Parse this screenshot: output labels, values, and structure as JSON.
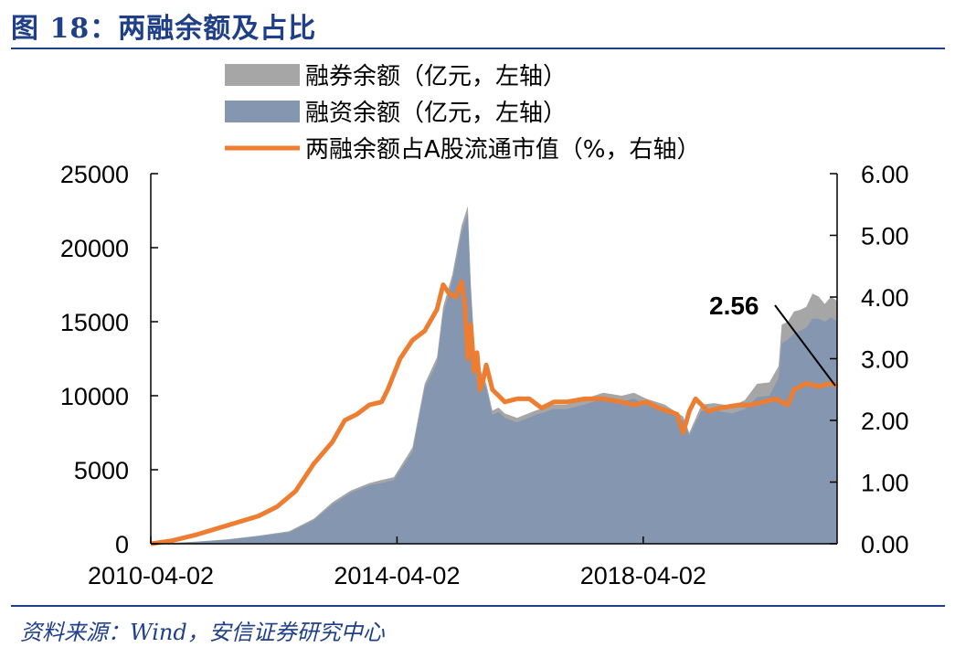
{
  "header": {
    "title": "图 18：两融余额及占比"
  },
  "footer": {
    "source": "资料来源：Wind，安信证券研究中心"
  },
  "colors": {
    "short": "#a6a6a6",
    "financing": "#8496b0",
    "ratio": "#ed7d31",
    "accent": "#1f3f88"
  },
  "chart_data": {
    "type": "area",
    "title": "两融余额及占比",
    "legend": [
      "融券余额（亿元，左轴）",
      "融资余额（亿元，左轴）",
      "两融余额占A股流通市值（%，右轴）"
    ],
    "legend_position": "top",
    "x_ticks": [
      "2010-04-02",
      "2014-04-02",
      "2018-04-02"
    ],
    "y_left": {
      "ticks": [
        "0",
        "5000",
        "10000",
        "15000",
        "20000",
        "25000"
      ],
      "range": [
        0,
        25000
      ]
    },
    "y_right": {
      "ticks": [
        "0.00",
        "1.00",
        "2.00",
        "3.00",
        "4.00",
        "5.00",
        "6.00"
      ],
      "range": [
        0,
        6
      ]
    },
    "x_range": [
      2010.25,
      2021.4
    ],
    "annotation": {
      "label": "2.56",
      "x": 2021.4,
      "y": 2.56
    },
    "series": [
      {
        "name": "融券余额（亿元，左轴）",
        "axis": "left",
        "stack": "total",
        "x": [
          2010.25,
          2010.6,
          2011.0,
          2011.5,
          2012.0,
          2012.5,
          2012.9,
          2013.2,
          2013.5,
          2013.8,
          2014.0,
          2014.2,
          2014.5,
          2014.7,
          2014.9,
          2015.0,
          2015.15,
          2015.3,
          2015.4,
          2015.45,
          2015.5,
          2015.55,
          2015.6,
          2015.7,
          2015.8,
          2015.9,
          2016.0,
          2016.2,
          2016.5,
          2016.8,
          2017.0,
          2017.3,
          2017.6,
          2017.9,
          2018.1,
          2018.3,
          2018.6,
          2018.9,
          2019.0,
          2019.2,
          2019.4,
          2019.7,
          2019.9,
          2020.1,
          2020.3,
          2020.45,
          2020.5,
          2020.6,
          2020.7,
          2020.8,
          2020.9,
          2021.0,
          2021.1,
          2021.2,
          2021.3,
          2021.4
        ],
        "values": [
          0,
          60,
          150,
          300,
          550,
          850,
          1700,
          2800,
          3600,
          4100,
          4300,
          4500,
          6500,
          10800,
          12600,
          16000,
          18200,
          21500,
          22800,
          17500,
          14000,
          11200,
          11800,
          10800,
          9000,
          9200,
          8800,
          8500,
          9000,
          9400,
          9400,
          9800,
          10200,
          10000,
          10200,
          9800,
          9400,
          8600,
          7500,
          9400,
          9500,
          9300,
          9700,
          10800,
          10900,
          12000,
          14800,
          15000,
          15700,
          15800,
          16000,
          16900,
          16700,
          16200,
          16700,
          16400
        ]
      },
      {
        "name": "融资余额（亿元，左轴）",
        "axis": "left",
        "stack": "base",
        "x": [
          2010.25,
          2010.6,
          2011.0,
          2011.5,
          2012.0,
          2012.5,
          2012.9,
          2013.2,
          2013.5,
          2013.8,
          2014.0,
          2014.2,
          2014.5,
          2014.7,
          2014.9,
          2015.0,
          2015.15,
          2015.3,
          2015.4,
          2015.45,
          2015.5,
          2015.55,
          2015.6,
          2015.7,
          2015.8,
          2015.9,
          2016.0,
          2016.2,
          2016.5,
          2016.8,
          2017.0,
          2017.3,
          2017.6,
          2017.9,
          2018.1,
          2018.3,
          2018.6,
          2018.9,
          2019.0,
          2019.2,
          2019.4,
          2019.7,
          2019.9,
          2020.1,
          2020.3,
          2020.45,
          2020.5,
          2020.6,
          2020.7,
          2020.8,
          2020.9,
          2021.0,
          2021.1,
          2021.2,
          2021.3,
          2021.4
        ],
        "values": [
          0,
          50,
          130,
          270,
          500,
          780,
          1600,
          2650,
          3450,
          3950,
          4100,
          4300,
          6200,
          10500,
          12200,
          15500,
          17800,
          21000,
          22300,
          17000,
          13600,
          10900,
          11500,
          10500,
          8700,
          8900,
          8500,
          8200,
          8700,
          9100,
          9100,
          9400,
          9800,
          9600,
          9800,
          9400,
          9000,
          8300,
          7300,
          9000,
          9000,
          8800,
          9100,
          9900,
          10000,
          11200,
          13500,
          13800,
          14200,
          14400,
          14600,
          15200,
          15200,
          15000,
          15300,
          15000
        ]
      },
      {
        "name": "两融余额占A股流通市值（%，右轴）",
        "axis": "right",
        "x": [
          2010.25,
          2010.6,
          2011.0,
          2011.5,
          2012.0,
          2012.3,
          2012.6,
          2012.9,
          2013.2,
          2013.4,
          2013.6,
          2013.8,
          2014.0,
          2014.1,
          2014.3,
          2014.5,
          2014.7,
          2014.9,
          2015.0,
          2015.1,
          2015.2,
          2015.3,
          2015.35,
          2015.4,
          2015.45,
          2015.5,
          2015.55,
          2015.6,
          2015.65,
          2015.7,
          2015.8,
          2015.9,
          2016.0,
          2016.2,
          2016.4,
          2016.6,
          2016.8,
          2017.0,
          2017.3,
          2017.6,
          2017.9,
          2018.1,
          2018.3,
          2018.5,
          2018.8,
          2018.9,
          2019.0,
          2019.1,
          2019.3,
          2019.5,
          2019.8,
          2020.0,
          2020.2,
          2020.4,
          2020.6,
          2020.7,
          2020.9,
          2021.1,
          2021.3,
          2021.4
        ],
        "values": [
          0,
          0.05,
          0.15,
          0.3,
          0.45,
          0.6,
          0.85,
          1.3,
          1.65,
          2.0,
          2.1,
          2.25,
          2.3,
          2.5,
          3.0,
          3.3,
          3.45,
          3.8,
          4.2,
          4.05,
          4.0,
          4.25,
          3.9,
          3.0,
          3.55,
          2.8,
          3.1,
          2.5,
          2.65,
          2.9,
          2.5,
          2.4,
          2.3,
          2.35,
          2.35,
          2.2,
          2.3,
          2.3,
          2.35,
          2.35,
          2.3,
          2.25,
          2.3,
          2.2,
          2.1,
          1.8,
          2.15,
          2.35,
          2.15,
          2.2,
          2.25,
          2.25,
          2.3,
          2.35,
          2.25,
          2.5,
          2.6,
          2.55,
          2.6,
          2.56
        ]
      }
    ]
  }
}
